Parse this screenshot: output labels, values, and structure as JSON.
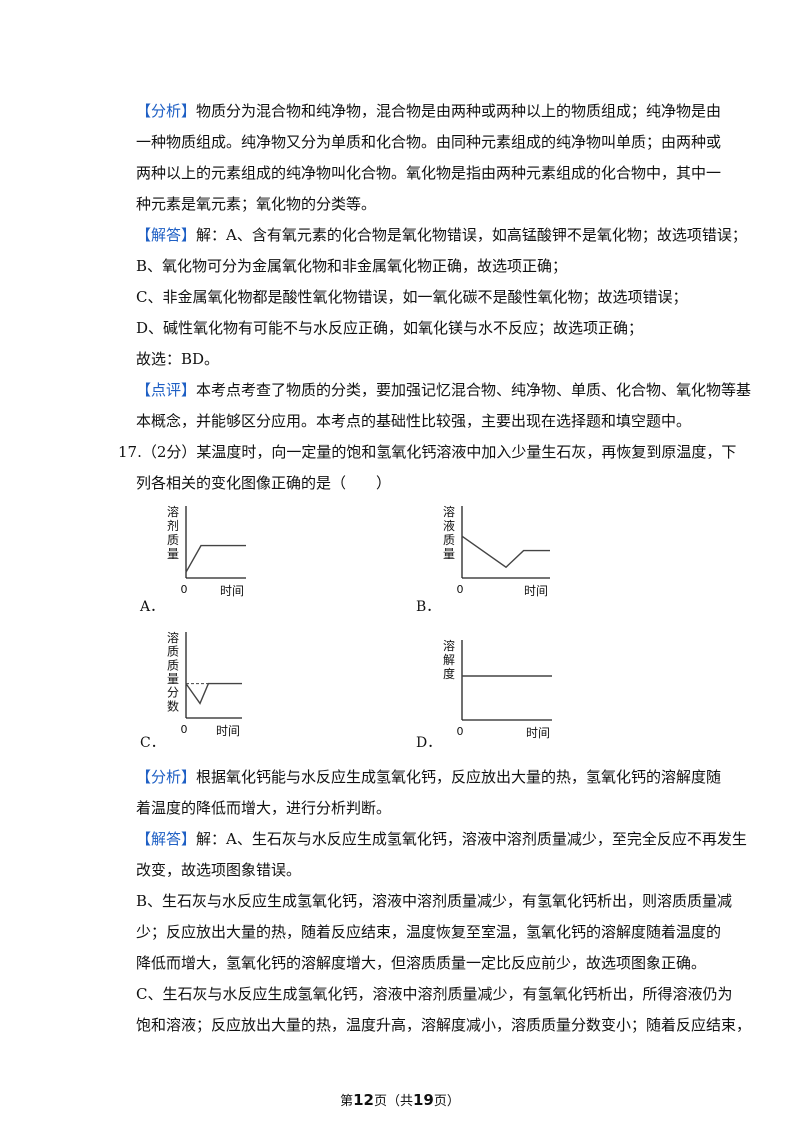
{
  "analysis1": {
    "tag": "【分析】",
    "lines": [
      "物质分为混合物和纯净物，混合物是由两种或两种以上的物质组成；纯净物是由",
      "一种物质组成。纯净物又分为单质和化合物。由同种元素组成的纯净物叫单质；由两种或",
      "两种以上的元素组成的纯净物叫化合物。氧化物是指由两种元素组成的化合物中，其中一",
      "种元素是氧元素；氧化物的分类等。"
    ]
  },
  "answer1": {
    "tag": "【解答】",
    "lines": [
      "解：A、含有氧元素的化合物是氧化物错误，如高锰酸钾不是氧化物；故选项错误；",
      "B、氧化物可分为金属氧化物和非金属氧化物正确，故选项正确；",
      "C、非金属氧化物都是酸性氧化物错误，如一氧化碳不是酸性氧化物；故选项错误；",
      "D、碱性氧化物有可能不与水反应正确，如氧化镁与水不反应；故选项正确；",
      "故选：BD。"
    ]
  },
  "comment1": {
    "tag": "【点评】",
    "lines": [
      "本考点考查了物质的分类，要加强记忆混合物、纯净物、单质、化合物、氧化物等基",
      "本概念，并能够区分应用。本考点的基础性比较强，主要出现在选择题和填空题中。"
    ]
  },
  "question17": {
    "lines": [
      "17.（2分）某温度时，向一定量的饱和氢氧化钙溶液中加入少量生石灰，再恢复到原温度，下",
      "列各相关的变化图像正确的是（　　）"
    ],
    "graphs": [
      {
        "option": "A．",
        "ylabel": [
          "溶",
          "剂",
          "质",
          "量"
        ],
        "origin": "0",
        "xlabel": "时间",
        "shape": "rise-plateau",
        "points": [
          [
            0,
            0.08
          ],
          [
            0.25,
            0.45
          ],
          [
            1,
            0.45
          ]
        ]
      },
      {
        "option": "B．",
        "ylabel": [
          "溶",
          "液",
          "质",
          "量"
        ],
        "origin": "0",
        "xlabel": "时间",
        "shape": "fall-recover",
        "points": [
          [
            0,
            0.58
          ],
          [
            0.5,
            0.15
          ],
          [
            0.7,
            0.38
          ],
          [
            1,
            0.38
          ]
        ]
      },
      {
        "option": "C．",
        "ylabel": [
          "溶",
          "质",
          "质",
          "量",
          "分",
          "数"
        ],
        "origin": "0",
        "xlabel": "时间",
        "shape": "dip-recover",
        "points": [
          [
            0,
            0.4
          ],
          [
            0.25,
            0.17
          ],
          [
            0.4,
            0.4
          ],
          [
            1,
            0.4
          ]
        ],
        "dashed_reference": 0.4
      },
      {
        "option": "D．",
        "ylabel": [
          "溶",
          "解",
          "度"
        ],
        "origin": "0",
        "xlabel": "时间",
        "shape": "constant",
        "points": [
          [
            0,
            0.55
          ],
          [
            1,
            0.55
          ]
        ]
      }
    ]
  },
  "analysis2": {
    "tag": "【分析】",
    "lines": [
      "根据氧化钙能与水反应生成氢氧化钙，反应放出大量的热，氢氧化钙的溶解度随",
      "着温度的降低而增大，进行分析判断。"
    ]
  },
  "answer2": {
    "tag": "【解答】",
    "lines": [
      "解：A、生石灰与水反应生成氢氧化钙，溶液中溶剂质量减少，至完全反应不再发生",
      "改变，故选项图象错误。",
      "B、生石灰与水反应生成氢氧化钙，溶液中溶剂质量减少，有氢氧化钙析出，则溶质质量减",
      "少；反应放出大量的热，随着反应结束，温度恢复至室温，氢氧化钙的溶解度随着温度的",
      "降低而增大，氢氧化钙的溶解度增大，但溶质质量一定比反应前少，故选项图象正确。",
      "C、生石灰与水反应生成氢氧化钙，溶液中溶剂质量减少，有氢氧化钙析出，所得溶液仍为",
      "饱和溶液；反应放出大量的热，温度升高，溶解度减小，溶质质量分数变小；随着反应结束，"
    ]
  },
  "footer": {
    "prefix": "第",
    "page": "12",
    "mid": "页（共",
    "total": "19",
    "suffix": "页）"
  }
}
